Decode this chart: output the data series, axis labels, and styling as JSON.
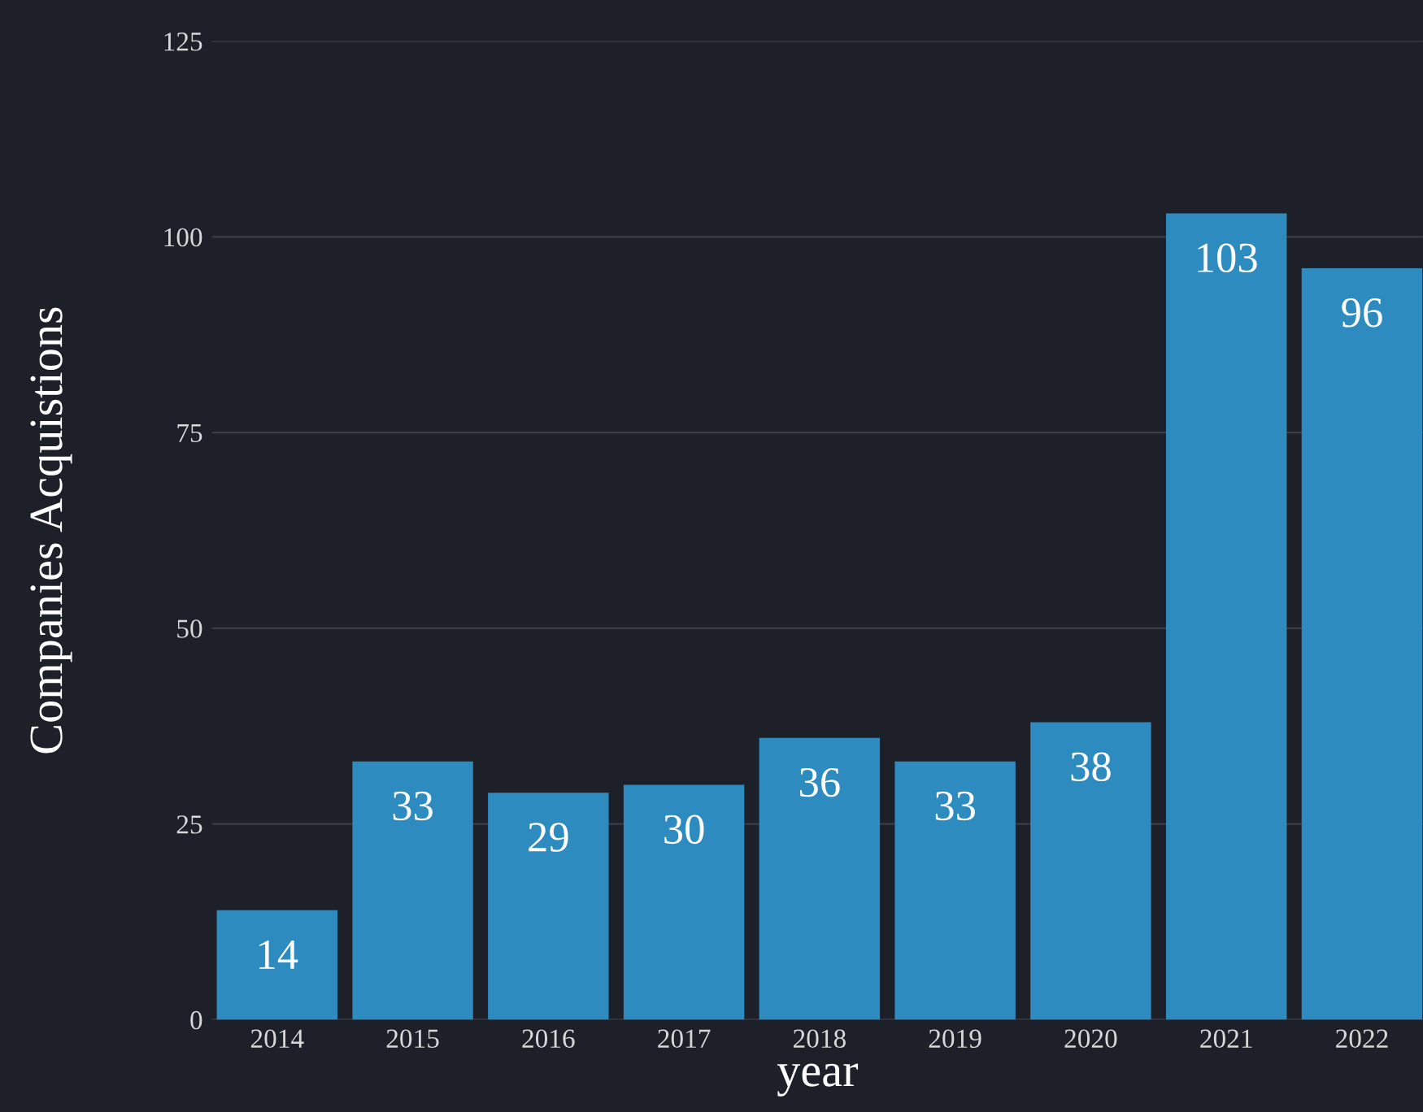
{
  "chart_data": {
    "type": "bar",
    "xlabel": "year",
    "ylabel": "Companies Acquistions",
    "categories": [
      "2014",
      "2015",
      "2016",
      "2017",
      "2018",
      "2019",
      "2020",
      "2021",
      "2022"
    ],
    "values": [
      14,
      33,
      29,
      30,
      36,
      33,
      38,
      103,
      96
    ],
    "color": "#2e8bc0",
    "ylim": [
      0,
      125
    ],
    "yticks": [
      0,
      25,
      50,
      75,
      100,
      125
    ],
    "grid": "y",
    "data_labels": true
  }
}
